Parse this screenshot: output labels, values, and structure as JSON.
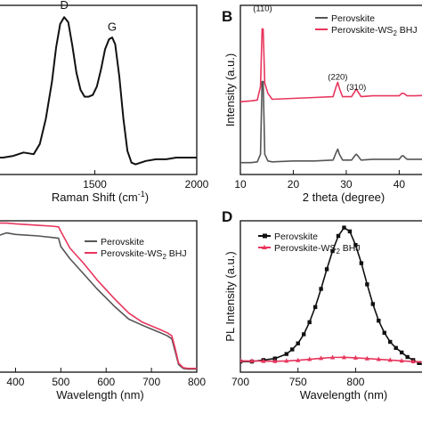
{
  "chart_data": [
    {
      "panel": "A",
      "panel_label": "",
      "type": "line",
      "xlabel": "Raman Shift (cm",
      "xlabel_sup": "-1",
      "xlabel_close": ")",
      "ylabel": "",
      "xlim": [
        1000,
        2000
      ],
      "ylim": [
        0,
        1
      ],
      "xticks": [
        {
          "v": 1000,
          "t": "00"
        },
        {
          "v": 1500,
          "t": "1500"
        },
        {
          "v": 2000,
          "t": "2000"
        }
      ],
      "color": "#111111",
      "annotations": [
        {
          "text": "D",
          "x": 1350,
          "y": 0.98
        },
        {
          "text": "G",
          "x": 1585,
          "y": 0.85
        }
      ],
      "series": [
        {
          "x": [
            1000,
            1050,
            1100,
            1150,
            1200,
            1230,
            1260,
            1290,
            1310,
            1330,
            1350,
            1370,
            1390,
            1410,
            1430,
            1450,
            1470,
            1490,
            1510,
            1530,
            1550,
            1570,
            1585,
            1600,
            1620,
            1640,
            1660,
            1680,
            1700,
            1750,
            1800,
            1850,
            1900,
            1950,
            2000
          ],
          "y": [
            0.1,
            0.1,
            0.11,
            0.13,
            0.12,
            0.18,
            0.33,
            0.55,
            0.75,
            0.89,
            0.93,
            0.9,
            0.76,
            0.6,
            0.5,
            0.46,
            0.46,
            0.47,
            0.52,
            0.62,
            0.74,
            0.8,
            0.81,
            0.77,
            0.58,
            0.33,
            0.14,
            0.07,
            0.06,
            0.08,
            0.09,
            0.09,
            0.1,
            0.1,
            0.1
          ]
        }
      ]
    },
    {
      "panel": "B",
      "panel_label": "B",
      "type": "line",
      "xlabel": "2 theta (degree)",
      "ylabel": "Intensity (a.u.)",
      "xlim": [
        10,
        47
      ],
      "ylim": [
        0,
        1
      ],
      "xticks": [
        {
          "v": 10,
          "t": "10"
        },
        {
          "v": 20,
          "t": "20"
        },
        {
          "v": 30,
          "t": "30"
        },
        {
          "v": 40,
          "t": "40"
        }
      ],
      "legend": {
        "placement": "top-right",
        "entries": [
          {
            "name": "Perovskite",
            "color": "#555555"
          },
          {
            "name": "Perovskite-WS",
            "sub": "2",
            "tail": " BHJ",
            "color": "#e8365d"
          }
        ]
      },
      "annotations": [
        {
          "text": "(110)",
          "x": 14.2,
          "y": 0.965
        },
        {
          "text": "(220)",
          "x": 28.4,
          "y": 0.56
        },
        {
          "text": "(310)",
          "x": 31.9,
          "y": 0.5
        }
      ],
      "series": [
        {
          "name": "Perovskite",
          "color": "#555555",
          "x": [
            10,
            12,
            13.2,
            13.8,
            14.1,
            14.3,
            14.6,
            15.2,
            16,
            20,
            24,
            27.5,
            28.1,
            28.4,
            28.7,
            29.3,
            31,
            31.6,
            31.9,
            32.2,
            32.8,
            35,
            40,
            40.5,
            40.8,
            41.1,
            41.5,
            43,
            47
          ],
          "y": [
            0.07,
            0.07,
            0.075,
            0.12,
            0.55,
            0.55,
            0.12,
            0.08,
            0.075,
            0.08,
            0.08,
            0.085,
            0.13,
            0.15,
            0.12,
            0.085,
            0.085,
            0.11,
            0.12,
            0.11,
            0.085,
            0.09,
            0.09,
            0.11,
            0.11,
            0.1,
            0.09,
            0.09,
            0.09
          ]
        },
        {
          "name": "Perovskite-WS2 BHJ",
          "color": "#e8365d",
          "x": [
            10,
            12,
            13.2,
            13.8,
            14.1,
            14.3,
            14.6,
            15.2,
            16,
            20,
            24,
            27.5,
            28.1,
            28.4,
            28.7,
            29.3,
            31,
            31.6,
            31.9,
            32.2,
            32.8,
            35,
            40,
            40.5,
            40.8,
            41.1,
            41.5,
            43,
            47
          ],
          "y": [
            0.43,
            0.435,
            0.44,
            0.52,
            0.86,
            0.86,
            0.54,
            0.48,
            0.445,
            0.45,
            0.455,
            0.46,
            0.52,
            0.545,
            0.51,
            0.46,
            0.46,
            0.49,
            0.505,
            0.49,
            0.46,
            0.465,
            0.465,
            0.48,
            0.48,
            0.475,
            0.465,
            0.465,
            0.47
          ]
        }
      ]
    },
    {
      "panel": "C",
      "panel_label": "",
      "type": "line",
      "xlabel": "Wavelength (nm)",
      "ylabel": "",
      "xlim": [
        350,
        800
      ],
      "ylim": [
        0,
        1
      ],
      "xticks": [
        {
          "v": 400,
          "t": "400"
        },
        {
          "v": 500,
          "t": "500"
        },
        {
          "v": 600,
          "t": "600"
        },
        {
          "v": 700,
          "t": "700"
        },
        {
          "v": 800,
          "t": "800"
        }
      ],
      "legend": {
        "placement": "top-right",
        "entries": [
          {
            "name": "Perovskite",
            "color": "#555555"
          },
          {
            "name": "Perovskite-WS",
            "sub": "2",
            "tail": " BHJ",
            "color": "#e8365d"
          }
        ]
      },
      "series": [
        {
          "name": "Perovskite",
          "color": "#555555",
          "x": [
            350,
            360,
            370,
            380,
            400,
            450,
            480,
            495,
            500,
            520,
            550,
            580,
            600,
            620,
            650,
            680,
            700,
            720,
            735,
            745,
            752,
            760,
            770,
            780,
            790,
            800
          ],
          "y": [
            0.93,
            0.9,
            0.91,
            0.92,
            0.91,
            0.9,
            0.89,
            0.885,
            0.83,
            0.75,
            0.65,
            0.55,
            0.49,
            0.43,
            0.35,
            0.31,
            0.285,
            0.26,
            0.24,
            0.22,
            0.14,
            0.05,
            0.025,
            0.02,
            0.02,
            0.02
          ]
        },
        {
          "name": "Perovskite-WS2 BHJ",
          "color": "#e8365d",
          "x": [
            350,
            360,
            370,
            380,
            400,
            450,
            480,
            495,
            500,
            520,
            550,
            580,
            600,
            620,
            650,
            680,
            700,
            720,
            735,
            745,
            752,
            760,
            770,
            780,
            790,
            800
          ],
          "y": [
            0.99,
            0.985,
            0.985,
            0.985,
            0.98,
            0.97,
            0.965,
            0.96,
            0.93,
            0.82,
            0.72,
            0.61,
            0.545,
            0.48,
            0.39,
            0.33,
            0.305,
            0.28,
            0.26,
            0.24,
            0.16,
            0.06,
            0.03,
            0.025,
            0.025,
            0.025
          ]
        }
      ]
    },
    {
      "panel": "D",
      "panel_label": "D",
      "type": "line",
      "xlabel": "Wavelength (nm)",
      "ylabel": "PL Intensity (a.u.)",
      "xlim": [
        700,
        870
      ],
      "ylim": [
        0,
        1
      ],
      "xticks": [
        {
          "v": 700,
          "t": "700"
        },
        {
          "v": 750,
          "t": "750"
        },
        {
          "v": 800,
          "t": "800"
        }
      ],
      "legend": {
        "placement": "top-left",
        "entries": [
          {
            "name": "Perovskite",
            "color": "#111111",
            "marker": "square"
          },
          {
            "name": "Perovskite-WS",
            "sub": "2",
            "tail": " BHJ",
            "color": "#e8365d",
            "marker": "triangle"
          }
        ]
      },
      "series": [
        {
          "name": "Perovskite",
          "color": "#111111",
          "marker": "square",
          "x": [
            700,
            710,
            720,
            730,
            740,
            745,
            750,
            755,
            760,
            765,
            770,
            775,
            780,
            785,
            790,
            795,
            800,
            805,
            810,
            815,
            820,
            825,
            830,
            835,
            840,
            845,
            850,
            855,
            860,
            865,
            870
          ],
          "y": [
            0.07,
            0.07,
            0.08,
            0.09,
            0.12,
            0.15,
            0.19,
            0.25,
            0.33,
            0.43,
            0.55,
            0.68,
            0.8,
            0.9,
            0.955,
            0.93,
            0.84,
            0.72,
            0.58,
            0.45,
            0.34,
            0.26,
            0.2,
            0.16,
            0.13,
            0.1,
            0.08,
            0.06,
            0.045,
            0.03,
            0.02
          ]
        },
        {
          "name": "Perovskite-WS2 BHJ",
          "color": "#e8365d",
          "marker": "triangle",
          "x": [
            700,
            710,
            720,
            730,
            740,
            750,
            760,
            770,
            780,
            790,
            800,
            810,
            820,
            830,
            840,
            850,
            860,
            870
          ],
          "y": [
            0.075,
            0.074,
            0.073,
            0.072,
            0.074,
            0.078,
            0.085,
            0.092,
            0.097,
            0.098,
            0.095,
            0.09,
            0.085,
            0.08,
            0.075,
            0.07,
            0.065,
            0.06
          ]
        }
      ]
    }
  ]
}
